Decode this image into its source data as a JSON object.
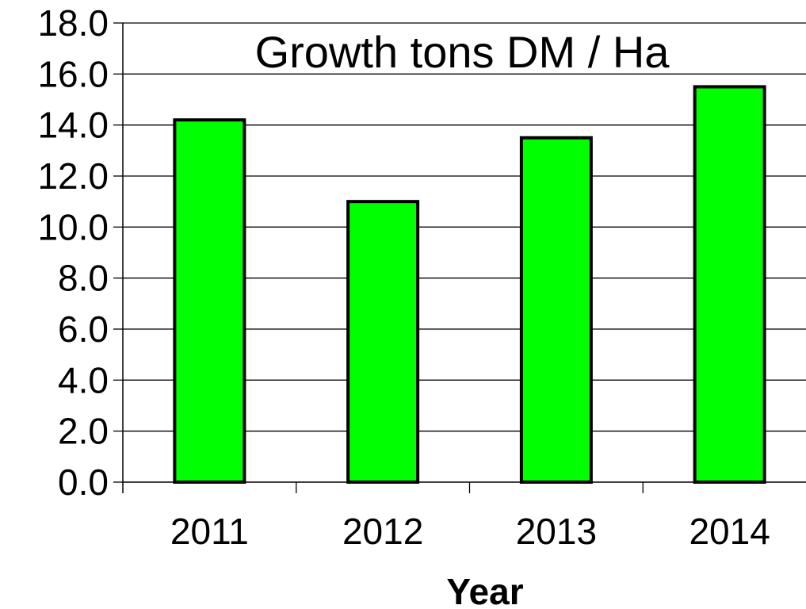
{
  "chart_data": {
    "type": "bar",
    "title": "Growth tons DM / Ha",
    "xlabel": "Year",
    "ylabel": "",
    "categories": [
      "2011",
      "2012",
      "2013",
      "2014"
    ],
    "values": [
      14.2,
      11.0,
      13.5,
      15.5
    ],
    "ylim": [
      0,
      18
    ],
    "y_ticks": [
      "0.0",
      "2.0",
      "4.0",
      "6.0",
      "8.0",
      "10.0",
      "12.0",
      "14.0",
      "16.0",
      "18.0"
    ],
    "grid": true,
    "legend": "none",
    "colors": {
      "bar_fill": "#00ff00",
      "bar_stroke": "#000000",
      "grid": "#000000",
      "background": "#ffffff"
    }
  }
}
